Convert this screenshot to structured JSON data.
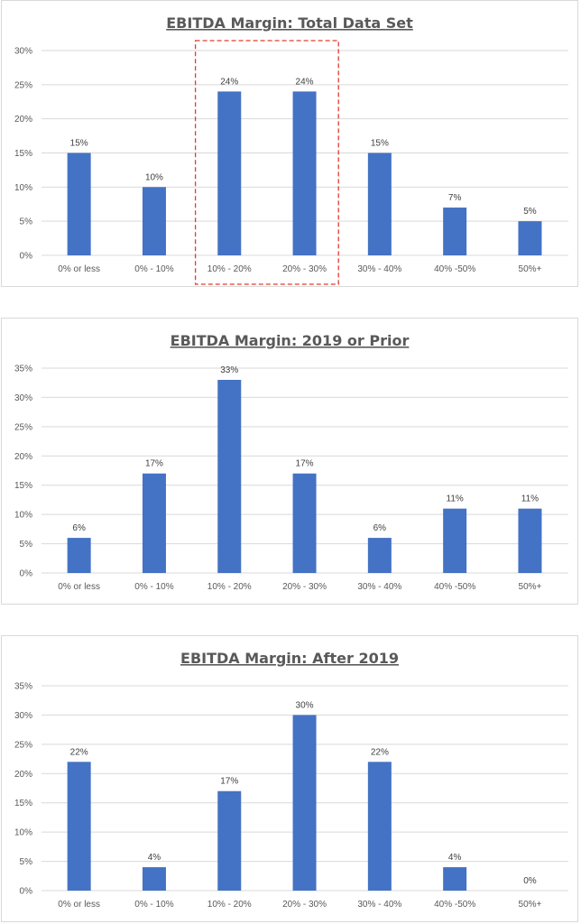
{
  "chart_data": [
    {
      "type": "bar",
      "title": "EBITDA Margin: Total Data Set",
      "categories": [
        "0% or less",
        "0% - 10%",
        "10% - 20%",
        "20% - 30%",
        "30% - 40%",
        "40% -50%",
        "50%+"
      ],
      "values": [
        15,
        10,
        24,
        24,
        15,
        7,
        5
      ],
      "data_labels": [
        "15%",
        "10%",
        "24%",
        "24%",
        "15%",
        "7%",
        "5%"
      ],
      "yticks": [
        "0%",
        "5%",
        "10%",
        "15%",
        "20%",
        "25%",
        "30%"
      ],
      "ylim": [
        0,
        30
      ],
      "xlabel": "",
      "ylabel": "",
      "grid": true,
      "highlight": [
        "10% - 20%",
        "20% - 30%"
      ],
      "highlight_color": "#e03c31"
    },
    {
      "type": "bar",
      "title": "EBITDA Margin: 2019 or Prior",
      "categories": [
        "0% or less",
        "0% - 10%",
        "10% - 20%",
        "20% - 30%",
        "30% - 40%",
        "40% -50%",
        "50%+"
      ],
      "values": [
        6,
        17,
        33,
        17,
        6,
        11,
        11
      ],
      "data_labels": [
        "6%",
        "17%",
        "33%",
        "17%",
        "6%",
        "11%",
        "11%"
      ],
      "yticks": [
        "0%",
        "5%",
        "10%",
        "15%",
        "20%",
        "25%",
        "30%",
        "35%"
      ],
      "ylim": [
        0,
        35
      ],
      "xlabel": "",
      "ylabel": "",
      "grid": true
    },
    {
      "type": "bar",
      "title": "EBITDA Margin: After 2019",
      "categories": [
        "0% or less",
        "0% - 10%",
        "10% - 20%",
        "20% - 30%",
        "30% - 40%",
        "40% -50%",
        "50%+"
      ],
      "values": [
        22,
        4,
        17,
        30,
        22,
        4,
        0
      ],
      "data_labels": [
        "22%",
        "4%",
        "17%",
        "30%",
        "22%",
        "4%",
        "0%"
      ],
      "yticks": [
        "0%",
        "5%",
        "10%",
        "15%",
        "20%",
        "25%",
        "30%",
        "35%"
      ],
      "ylim": [
        0,
        35
      ],
      "xlabel": "",
      "ylabel": "",
      "grid": true
    }
  ],
  "colors": {
    "bar": "#4472c4",
    "grid": "#d9d9d9",
    "text": "#595959"
  }
}
